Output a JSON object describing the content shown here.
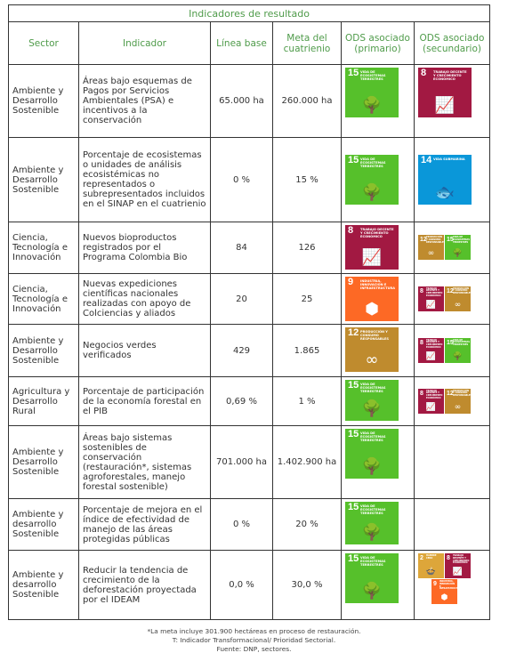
{
  "table": {
    "title": "Indicadores de resultado",
    "headers": {
      "sector": "Sector",
      "indicator": "Indicador",
      "baseline": "Línea base",
      "goal": "Meta del cuatrienio",
      "ods_primary": "ODS asociado (primario)",
      "ods_secondary": "ODS asociado (secundario)"
    },
    "rows": [
      {
        "sector": "Ambiente y Desarrollo Sostenible",
        "indicator": "Áreas bajo esquemas de Pagos por Servicios Ambientales (PSA) e incentivos a la conservación",
        "baseline": "65.000 ha",
        "goal": "260.000 ha"
      },
      {
        "sector": "Ambiente y Desarrollo Sostenible",
        "indicator": "Porcentaje de ecosistemas o unidades de análisis ecosistémicas no representados o subrepresentados incluidos en el SINAP en el cuatrienio",
        "baseline": "0 %",
        "goal": "15 %"
      },
      {
        "sector": "Ciencia, Tecnología e Innovación",
        "indicator": "Nuevos bioproductos registrados por el Programa Colombia Bio",
        "baseline": "84",
        "goal": "126"
      },
      {
        "sector": "Ciencia, Tecnología e Innovación",
        "indicator": "Nuevas expediciones científicas nacionales realizadas con apoyo de Colciencias y aliados",
        "baseline": "20",
        "goal": "25"
      },
      {
        "sector": "Ambiente y Desarrollo Sostenible",
        "indicator": "Negocios verdes verificados",
        "baseline": "429",
        "goal": "1.865"
      },
      {
        "sector": "Agricultura y Desarrollo Rural",
        "indicator": "Porcentaje de participación de la economía forestal en el PIB",
        "baseline": "0,69 %",
        "goal": "1 %"
      },
      {
        "sector": "Ambiente y Desarrollo Sostenible",
        "indicator": "Áreas bajo sistemas sostenibles de conservación (restauración*, sistemas agroforestales, manejo forestal sostenible)",
        "baseline": "701.000 ha",
        "goal": "1.402.900 ha"
      },
      {
        "sector": "Ambiente y desarrollo Sostenible",
        "indicator": "Porcentaje de mejora en el índice de efectividad de manejo de las áreas protegidas públicas",
        "baseline": "0 %",
        "goal": "20 %"
      },
      {
        "sector": "Ambiente y desarrollo Sostenible",
        "indicator": "Reducir la tendencia de crecimiento de la deforestación proyectada por el IDEAM",
        "baseline": "0,0 %",
        "goal": "30,0 %"
      }
    ]
  },
  "sdg": {
    "s15": {
      "number": "15",
      "title": "Vida de ecosistemas terrestres",
      "color": "#56c02b",
      "icon": "tree-icon"
    },
    "s8": {
      "number": "8",
      "title": "Trabajo decente y crecimiento económico",
      "color": "#a21942",
      "icon": "growth-chart-icon"
    },
    "s14": {
      "number": "14",
      "title": "Vida submarina",
      "color": "#0a97d9",
      "icon": "fish-icon"
    },
    "s12": {
      "number": "12",
      "title": "Producción y consumo responsables",
      "color": "#bf8b2e",
      "icon": "infinity-icon"
    },
    "s9": {
      "number": "9",
      "title": "Industria, innovación e infraestructura",
      "color": "#fd6925",
      "icon": "cubes-icon"
    },
    "s2": {
      "number": "2",
      "title": "Hambre cero",
      "color": "#dda63a",
      "icon": "bowl-icon"
    }
  },
  "notes": {
    "line1": "*La meta incluye 301.900 hectáreas en proceso de restauración.",
    "line2": "T: Indicador Transformacional/ Prioridad Sectorial.",
    "line3": "Fuente: DNP, sectores."
  }
}
